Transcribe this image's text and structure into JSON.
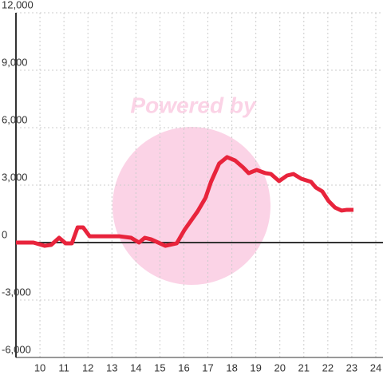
{
  "chart_data": {
    "type": "line",
    "annotation": "Powered by",
    "x": [
      9,
      9.73,
      10.2,
      10.47,
      10.8,
      11.07,
      11.33,
      11.57,
      11.8,
      12.07,
      13.3,
      13.8,
      14.13,
      14.37,
      14.63,
      15.23,
      15.7,
      16.03,
      16.57,
      16.9,
      17.13,
      17.47,
      17.8,
      18.13,
      18.47,
      18.7,
      19.03,
      19.4,
      19.63,
      19.97,
      20.3,
      20.57,
      20.9,
      21.3,
      21.5,
      21.77,
      22.03,
      22.3,
      22.57,
      22.8,
      23.07
    ],
    "series": [
      {
        "color": "#e8243c",
        "values": [
          0,
          0,
          -170,
          -120,
          250,
          -40,
          -40,
          790,
          790,
          330,
          330,
          250,
          0,
          250,
          170,
          -170,
          -40,
          670,
          1625,
          2330,
          3170,
          4125,
          4460,
          4290,
          3920,
          3625,
          3790,
          3625,
          3580,
          3210,
          3500,
          3580,
          3330,
          3170,
          2875,
          2670,
          2170,
          1830,
          1670,
          1710,
          1710
        ]
      }
    ],
    "xlim": [
      9,
      24.3
    ],
    "xticks": [
      10,
      11,
      12,
      13,
      14,
      15,
      16,
      17,
      18,
      19,
      20,
      21,
      22,
      23,
      24
    ],
    "ylim": [
      -6000,
      12000
    ],
    "yticks": [
      {
        "value": -6000,
        "label": "-6,000"
      },
      {
        "value": -3000,
        "label": "-3,000"
      },
      0,
      {
        "value": 3000,
        "label": "3,000"
      },
      {
        "value": 6000,
        "label": "6,000"
      },
      {
        "value": 9000,
        "label": "9,000"
      },
      {
        "value": 12000,
        "label": "12,000"
      }
    ],
    "grid": true
  }
}
